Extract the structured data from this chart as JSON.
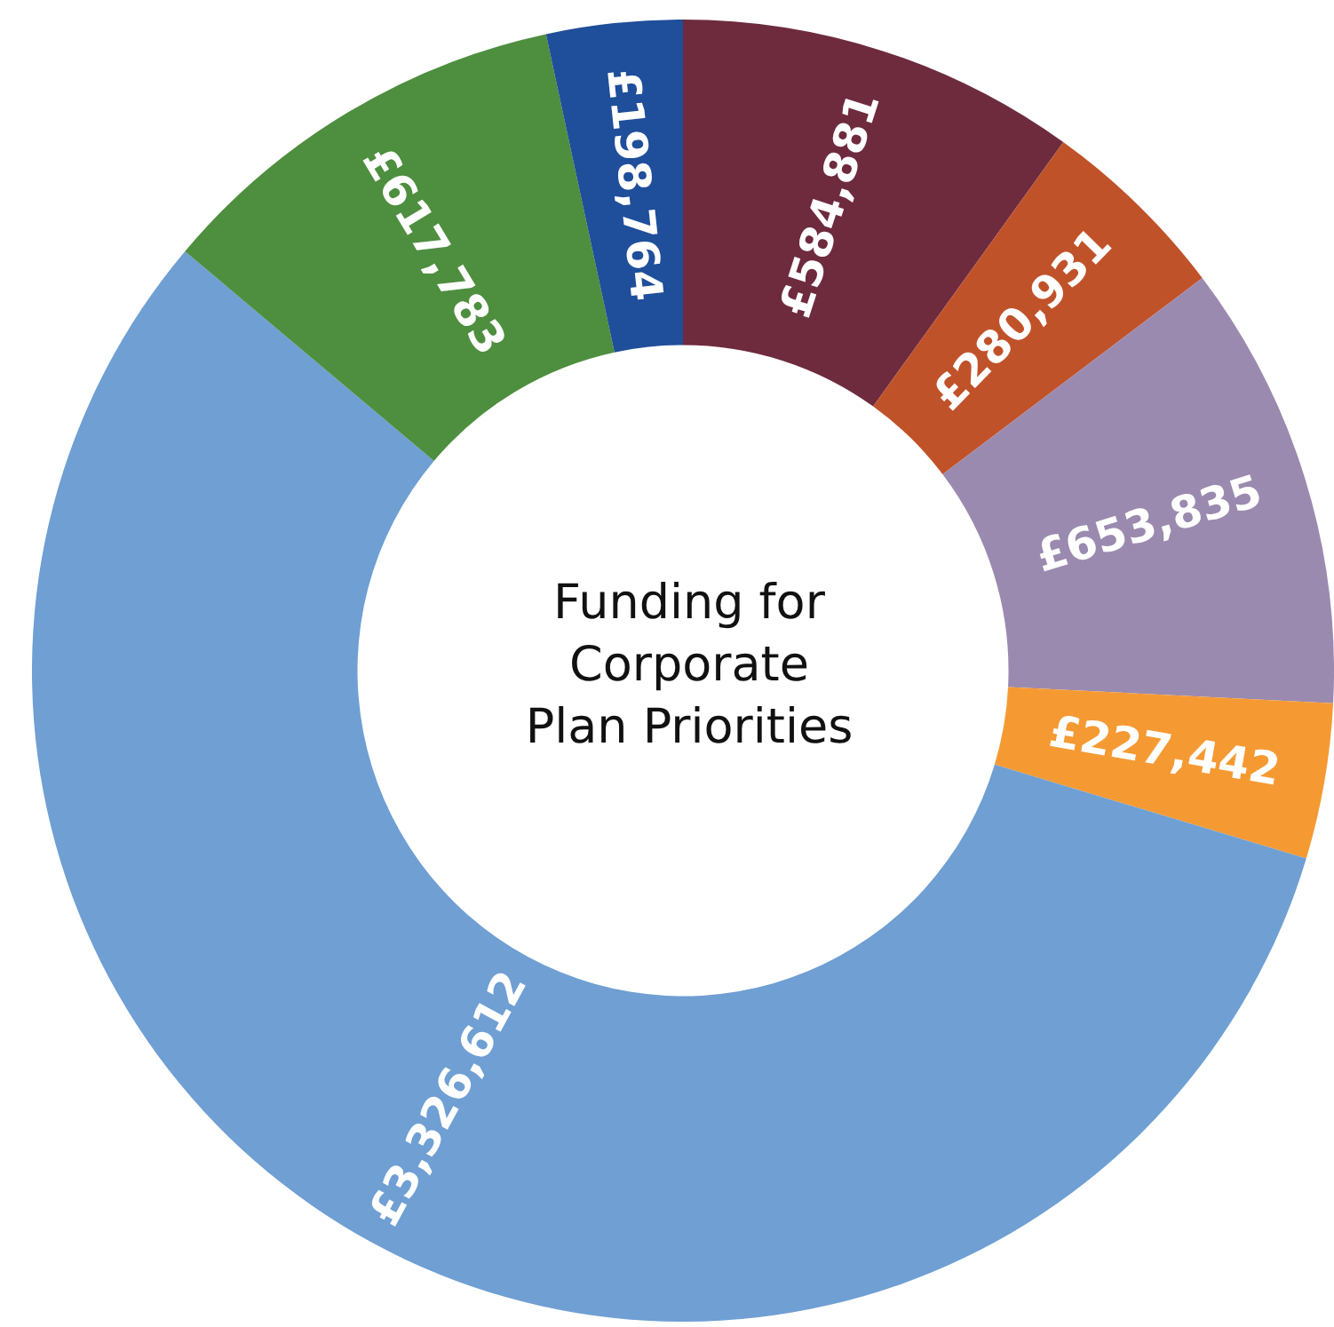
{
  "chart_data": {
    "type": "donut",
    "title": "Funding for Corporate Plan Priorities",
    "categories": [
      null,
      null,
      null,
      null,
      null,
      null,
      null
    ],
    "values": [
      584881,
      280931,
      653835,
      227442,
      3326612,
      617783,
      198764
    ],
    "colors": [
      "#6e2b3e",
      "#c0522a",
      "#9b8aaf",
      "#f59a33",
      "#6f9fd3",
      "#4e8e3f",
      "#1f4e9a"
    ],
    "value_labels": [
      "£584,881",
      "£280,931",
      "£653,835",
      "£227,442",
      "£3,326,612",
      "£617,783",
      "£198,764"
    ],
    "legend": false
  }
}
